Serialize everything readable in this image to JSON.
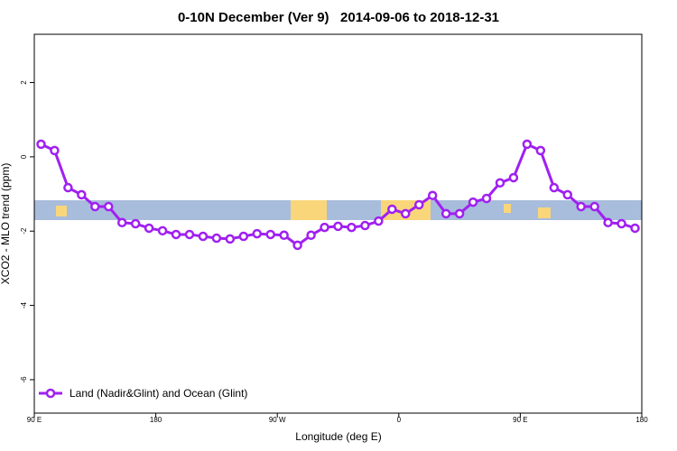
{
  "chart_data": {
    "type": "line",
    "title": "0-10N December (Ver 9)   2014-09-06 to 2018-12-31",
    "x_label": "Longitude (deg E)",
    "y_label": "XCO2 - MLO trend (ppm)",
    "x": [
      95,
      105,
      115,
      125,
      135,
      145,
      155,
      165,
      175,
      185,
      195,
      205,
      215,
      225,
      235,
      245,
      255,
      265,
      275,
      285,
      295,
      305,
      315,
      325,
      335,
      345,
      355,
      365,
      375,
      385,
      395,
      405,
      415,
      425,
      435,
      445,
      455,
      465,
      475,
      485,
      495,
      505,
      515,
      525,
      535
    ],
    "series": [
      {
        "name": "Land (Nadir&Glint) and Ocean (Glint)",
        "color": "#a020f0",
        "values": [
          0.34,
          0.17,
          -0.83,
          -1.02,
          -1.34,
          -1.34,
          -1.77,
          -1.8,
          -1.92,
          -1.99,
          -2.09,
          -2.09,
          -2.14,
          -2.19,
          -2.21,
          -2.14,
          -2.07,
          -2.09,
          -2.11,
          -2.38,
          -2.11,
          -1.9,
          -1.87,
          -1.9,
          -1.85,
          -1.73,
          -1.41,
          -1.53,
          -1.29,
          -1.04,
          -1.53,
          -1.53,
          -1.22,
          -1.12,
          -0.7,
          -0.56,
          0.34,
          0.17,
          -0.83,
          -1.02,
          -1.34,
          -1.34,
          -1.77,
          -1.8,
          -1.92
        ]
      }
    ],
    "xlim": [
      90,
      540
    ],
    "xticks": [
      {
        "value": 90,
        "label": "90 E"
      },
      {
        "value": 180,
        "label": "180"
      },
      {
        "value": 270,
        "label": "90 W"
      },
      {
        "value": 360,
        "label": "0"
      },
      {
        "value": 450,
        "label": "90 E"
      },
      {
        "value": 540,
        "label": "180"
      }
    ],
    "ylim": [
      -6.9,
      3.3
    ],
    "yticks": [
      -6,
      -4,
      -2,
      0,
      2
    ],
    "legend": "bottom-left"
  }
}
